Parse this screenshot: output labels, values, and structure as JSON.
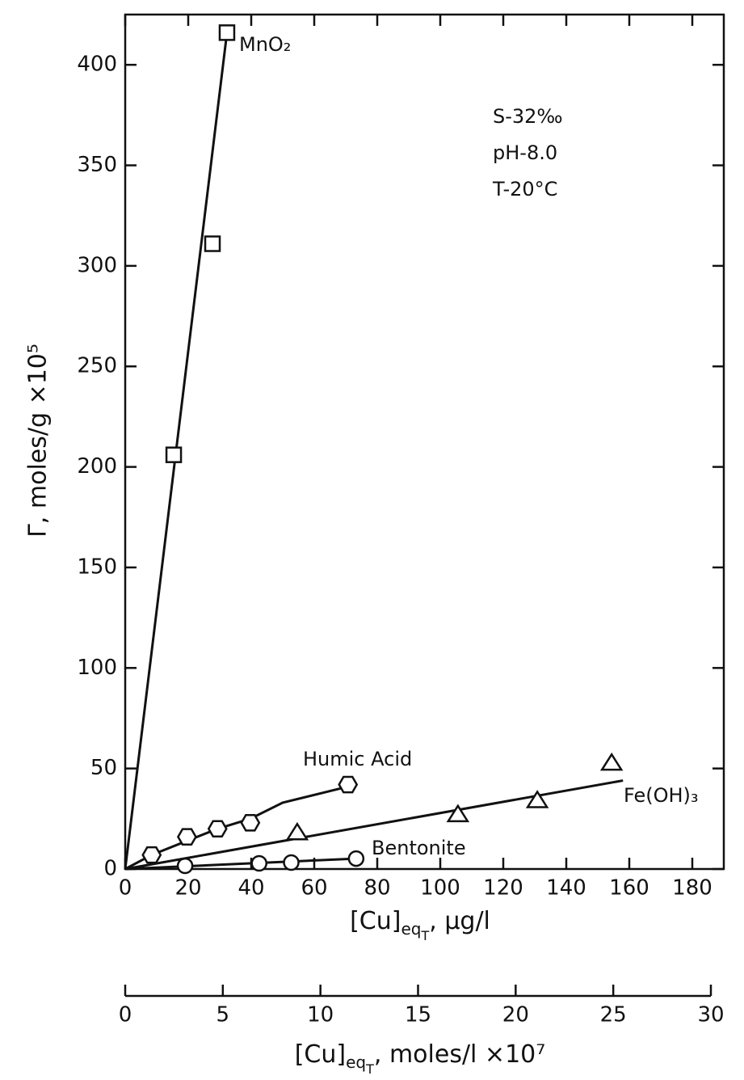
{
  "chart_data": {
    "type": "scatter",
    "ylabel": "Γ, moles/g ×10⁵",
    "xlabel": [
      "[Cu]",
      "eq",
      "T",
      ", μg/l"
    ],
    "x2label": [
      "[Cu]",
      "eq",
      "T",
      ", moles/l ×10⁷"
    ],
    "xlim": [
      0,
      190
    ],
    "xticks": [
      0,
      20,
      40,
      60,
      80,
      100,
      120,
      140,
      160,
      180
    ],
    "ylim": [
      0,
      425
    ],
    "yticks": [
      0,
      50,
      100,
      150,
      200,
      250,
      300,
      350,
      400
    ],
    "x2lim": [
      0,
      30
    ],
    "x2ticks": [
      0,
      5,
      10,
      15,
      20,
      25,
      30
    ],
    "annotations": [
      "S-32‰",
      "pH-8.0",
      "T-20°C"
    ],
    "series": [
      {
        "name": "MnO₂",
        "marker": "square",
        "color": "#111111",
        "x": [
          15.4,
          27.7,
          32.3
        ],
        "values": [
          206,
          311,
          416
        ],
        "fit_x": [
          0,
          32.3
        ],
        "fit_y": [
          0,
          416
        ]
      },
      {
        "name": "Humic Acid",
        "marker": "hexagon",
        "color": "#111111",
        "x": [
          8.4,
          19.6,
          29.3,
          39.7,
          70.7
        ],
        "values": [
          7,
          16,
          20,
          23,
          42
        ],
        "fit_x": [
          0,
          8.4,
          19.6,
          29.3,
          39.7,
          50,
          70.7
        ],
        "fit_y": [
          0,
          7,
          14,
          20,
          25,
          33,
          41
        ]
      },
      {
        "name": "Bentonite",
        "marker": "circle",
        "color": "#111111",
        "x": [
          19,
          42.5,
          52.7,
          73.3
        ],
        "values": [
          1.6,
          2.8,
          3.2,
          5.2
        ],
        "fit_x": [
          0,
          73.3
        ],
        "fit_y": [
          0,
          5.2
        ]
      },
      {
        "name": "Fe(OH)₃",
        "marker": "triangle",
        "color": "#111111",
        "x": [
          54.6,
          105.6,
          130.8,
          154.4
        ],
        "values": [
          18,
          27,
          34,
          52.6
        ],
        "fit_x": [
          0,
          158
        ],
        "fit_y": [
          0,
          44
        ]
      }
    ]
  }
}
